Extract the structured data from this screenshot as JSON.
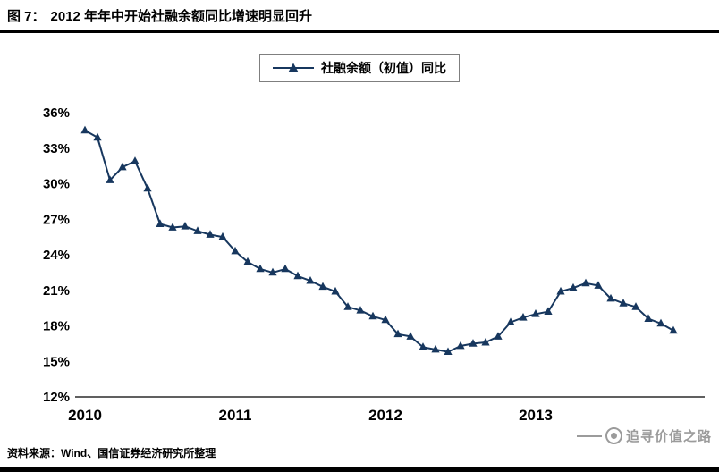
{
  "header": {
    "figure_label": "图 7：",
    "title": "2012 年年中开始社融余额同比增速明显回升"
  },
  "legend": {
    "label": "社融余额（初值）同比"
  },
  "footer": {
    "source": "资料来源：Wind、国信证券经济研究所整理",
    "watermark": "追寻价值之路"
  },
  "colors": {
    "line": "#17375E",
    "axis": "#000000",
    "watermark": "#9B9B9B"
  },
  "chart_data": {
    "type": "line",
    "title": "2012 年年中开始社融余额同比增速明显回升",
    "legend_entries": [
      "社融余额（初值）同比"
    ],
    "marker": "triangle",
    "grid": false,
    "ylim": [
      12,
      36
    ],
    "yticks": [
      12,
      15,
      18,
      21,
      24,
      27,
      30,
      33,
      36
    ],
    "ytick_suffix": "%",
    "x_tick_labels": [
      "2010",
      "2011",
      "2012",
      "2013"
    ],
    "x": [
      "2010-01",
      "2010-02",
      "2010-03",
      "2010-04",
      "2010-05",
      "2010-06",
      "2010-07",
      "2010-08",
      "2010-09",
      "2010-10",
      "2010-11",
      "2010-12",
      "2011-01",
      "2011-02",
      "2011-03",
      "2011-04",
      "2011-05",
      "2011-06",
      "2011-07",
      "2011-08",
      "2011-09",
      "2011-10",
      "2011-11",
      "2011-12",
      "2012-01",
      "2012-02",
      "2012-03",
      "2012-04",
      "2012-05",
      "2012-06",
      "2012-07",
      "2012-08",
      "2012-09",
      "2012-10",
      "2012-11",
      "2012-12",
      "2013-01",
      "2013-02",
      "2013-03",
      "2013-04",
      "2013-05",
      "2013-06",
      "2013-07",
      "2013-08",
      "2013-09",
      "2013-10",
      "2013-11",
      "2013-12"
    ],
    "values": [
      34.5,
      33.9,
      30.3,
      31.4,
      31.9,
      29.6,
      26.6,
      26.3,
      26.4,
      26.0,
      25.7,
      25.5,
      24.3,
      23.4,
      22.8,
      22.5,
      22.8,
      22.2,
      21.8,
      21.3,
      20.9,
      19.6,
      19.3,
      18.8,
      18.5,
      17.3,
      17.1,
      16.2,
      16.0,
      15.8,
      16.3,
      16.5,
      16.6,
      17.1,
      18.3,
      18.7,
      19.0,
      19.2,
      20.9,
      21.2,
      21.6,
      21.4,
      20.3,
      19.9,
      19.6,
      18.6,
      18.2,
      17.6
    ]
  }
}
